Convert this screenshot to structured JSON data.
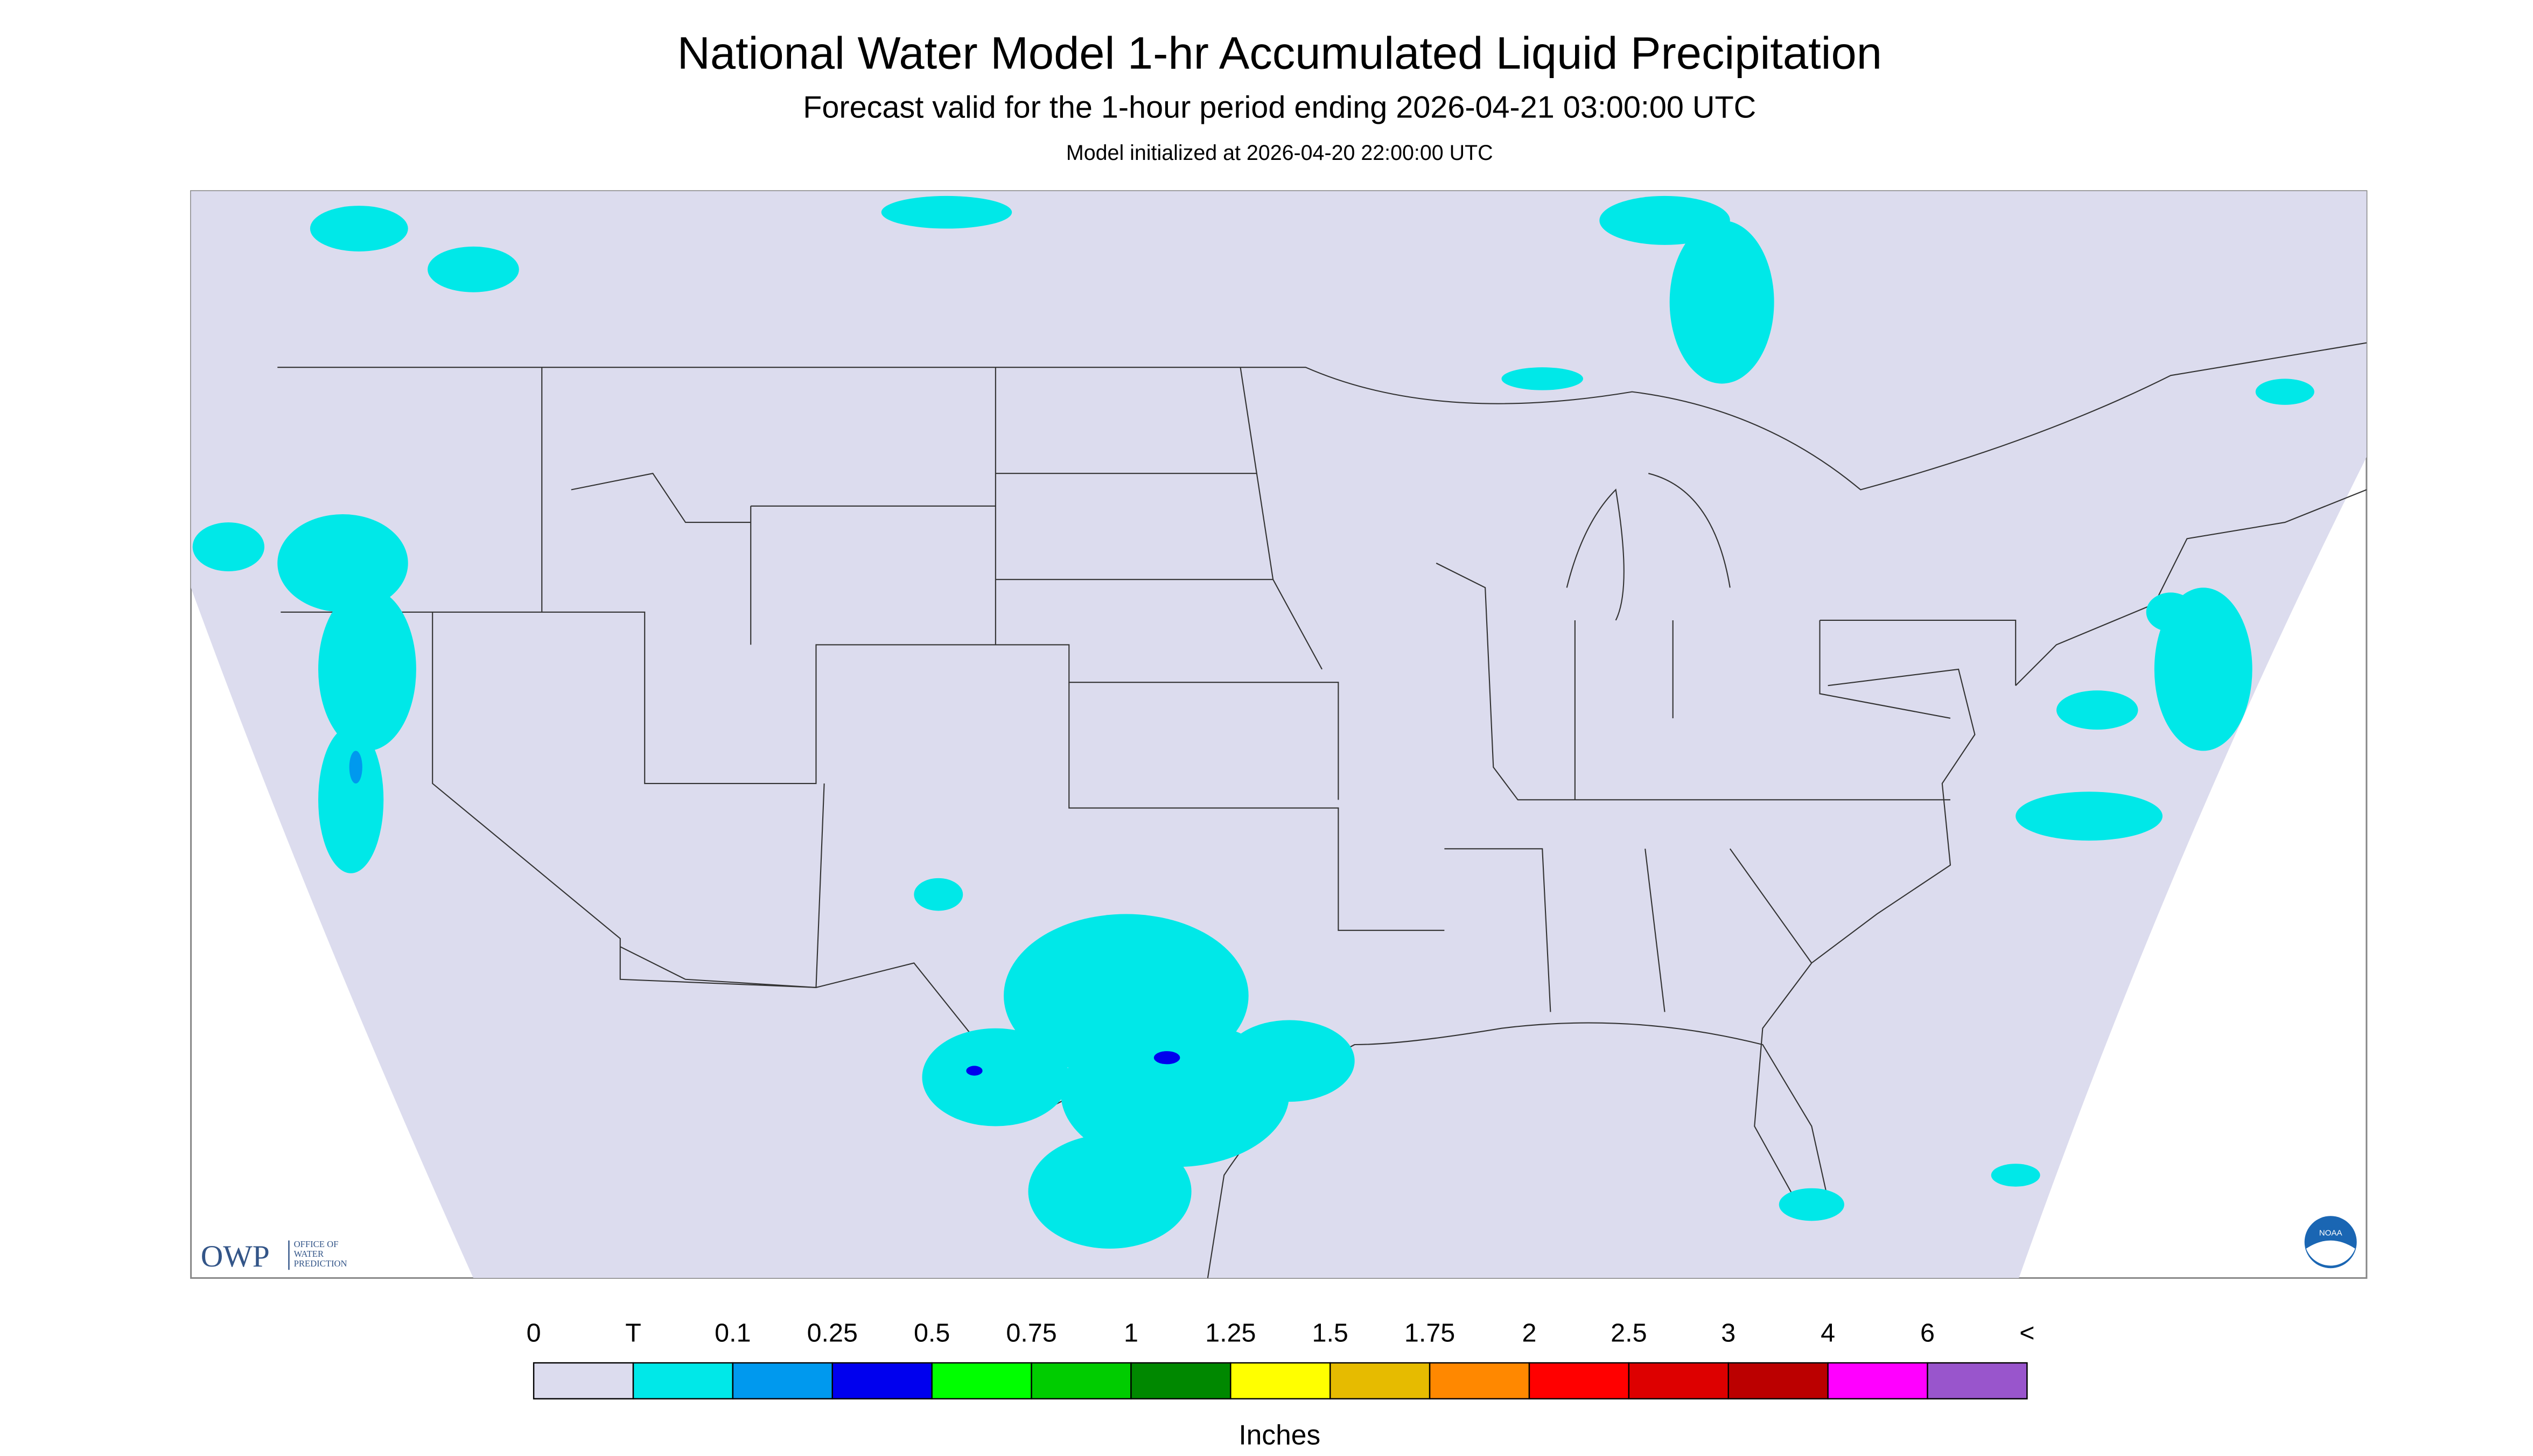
{
  "header": {
    "title": "National Water Model 1-hr Accumulated Liquid Precipitation",
    "subtitle": "Forecast valid for the 1-hour period ending 2026-04-21 03:00:00 UTC",
    "note": "Model initialized at 2026-04-20 22:00:00 UTC"
  },
  "logos": {
    "owp": "OWP",
    "owp_text": [
      "OFFICE OF",
      "WATER",
      "PREDICTION"
    ],
    "noaa": "NOAA"
  },
  "legend": {
    "labels": [
      "0",
      "T",
      "0.1",
      "0.25",
      "0.5",
      "0.75",
      "1",
      "1.25",
      "1.5",
      "1.75",
      "2",
      "2.5",
      "3",
      "4",
      "6",
      "<"
    ],
    "colors": [
      "#dcdcee",
      "#00e8e8",
      "#0099ee",
      "#0000ee",
      "#00ff00",
      "#00cc00",
      "#008800",
      "#ffff00",
      "#e6bb00",
      "#ff8800",
      "#ff0000",
      "#dd0000",
      "#bb0000",
      "#ff00ff",
      "#9955cc"
    ],
    "unit": "Inches"
  }
}
